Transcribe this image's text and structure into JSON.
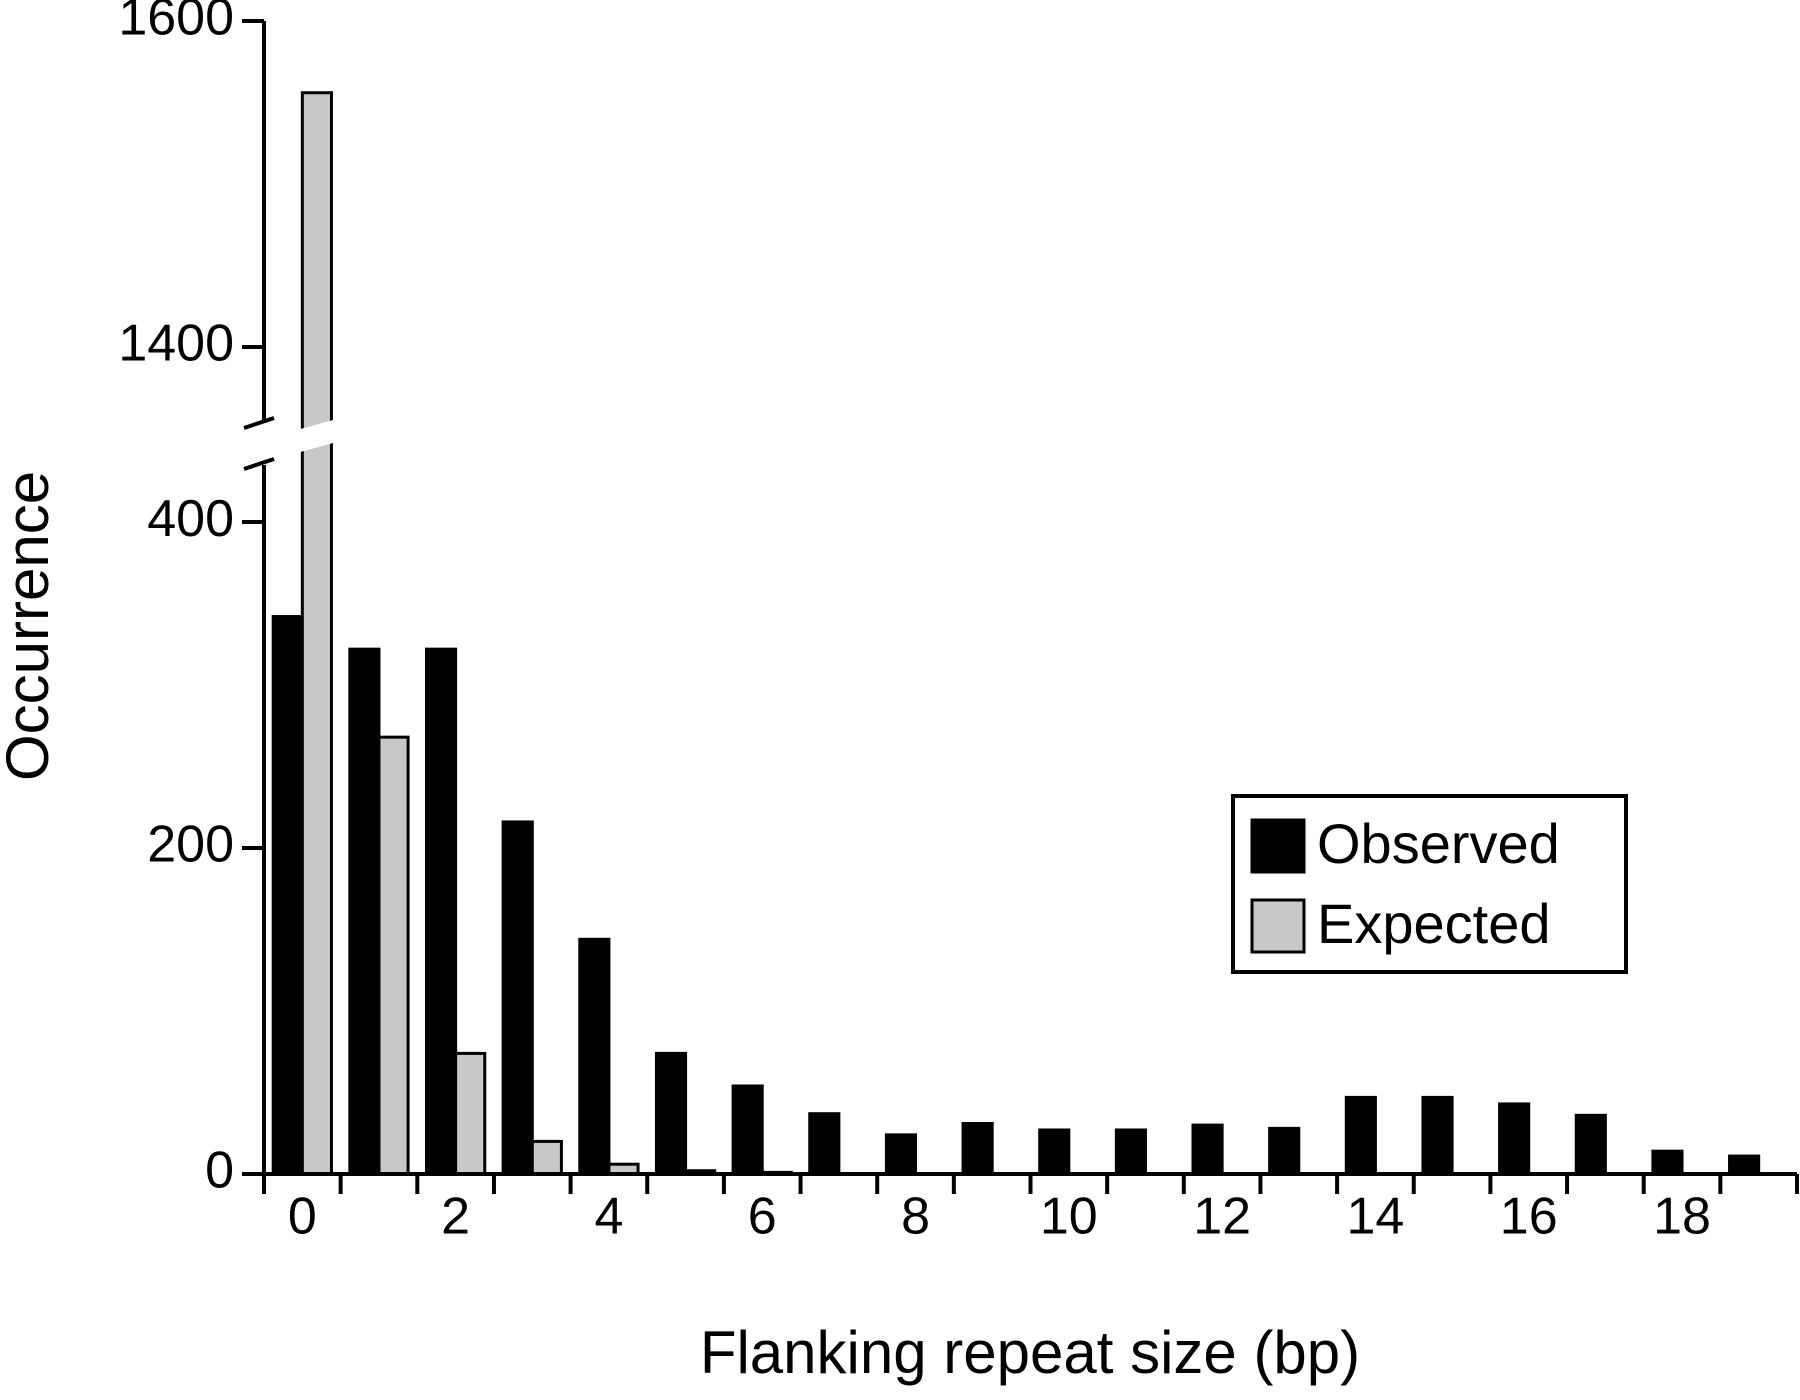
{
  "chart_data": {
    "type": "bar",
    "x_label": "Flanking repeat size (bp)",
    "y_label": "Occurrence",
    "categories": [
      "0",
      null,
      "2",
      null,
      "4",
      null,
      "6",
      null,
      "8",
      null,
      "10",
      null,
      "12",
      null,
      "14",
      null,
      "16",
      null,
      "18",
      null
    ],
    "series": [
      {
        "name": "Observed",
        "color": "#000000",
        "values": [
          342,
          322,
          322,
          216,
          144,
          74,
          54,
          37,
          24,
          31,
          27,
          27,
          30,
          28,
          47,
          47,
          43,
          36,
          14,
          11
        ]
      },
      {
        "name": "Expected",
        "color": "#c8c8c8",
        "values": [
          1556,
          268,
          74,
          20,
          6,
          2,
          1,
          0,
          0,
          0,
          0,
          0,
          0,
          0,
          0,
          0,
          0,
          0,
          0,
          0
        ]
      }
    ],
    "ylim": [
      0,
      1600
    ],
    "axis_break": [
      435,
      1354
    ],
    "yticks": [
      0,
      200,
      400,
      1400,
      1600
    ],
    "legend": "center-right",
    "grid": false
  }
}
